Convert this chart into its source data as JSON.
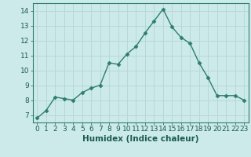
{
  "x": [
    0,
    1,
    2,
    3,
    4,
    5,
    6,
    7,
    8,
    9,
    10,
    11,
    12,
    13,
    14,
    15,
    16,
    17,
    18,
    19,
    20,
    21,
    22,
    23
  ],
  "y": [
    6.8,
    7.3,
    8.2,
    8.1,
    8.0,
    8.5,
    8.8,
    9.0,
    10.5,
    10.4,
    11.1,
    11.6,
    12.5,
    13.3,
    14.1,
    12.9,
    12.2,
    11.8,
    10.5,
    9.5,
    8.3,
    8.3,
    8.3,
    8.0
  ],
  "line_color": "#2e7d6e",
  "marker": "D",
  "marker_size": 2.5,
  "bg_color": "#cceaea",
  "grid_color": "#b8d8d8",
  "xlabel": "Humidex (Indice chaleur)",
  "xlim": [
    -0.5,
    23.5
  ],
  "ylim": [
    6.5,
    14.5
  ],
  "yticks": [
    7,
    8,
    9,
    10,
    11,
    12,
    13,
    14
  ],
  "xticks": [
    0,
    1,
    2,
    3,
    4,
    5,
    6,
    7,
    8,
    9,
    10,
    11,
    12,
    13,
    14,
    15,
    16,
    17,
    18,
    19,
    20,
    21,
    22,
    23
  ],
  "tick_fontsize": 6.5,
  "label_fontsize": 7.5,
  "line_width": 1.0
}
